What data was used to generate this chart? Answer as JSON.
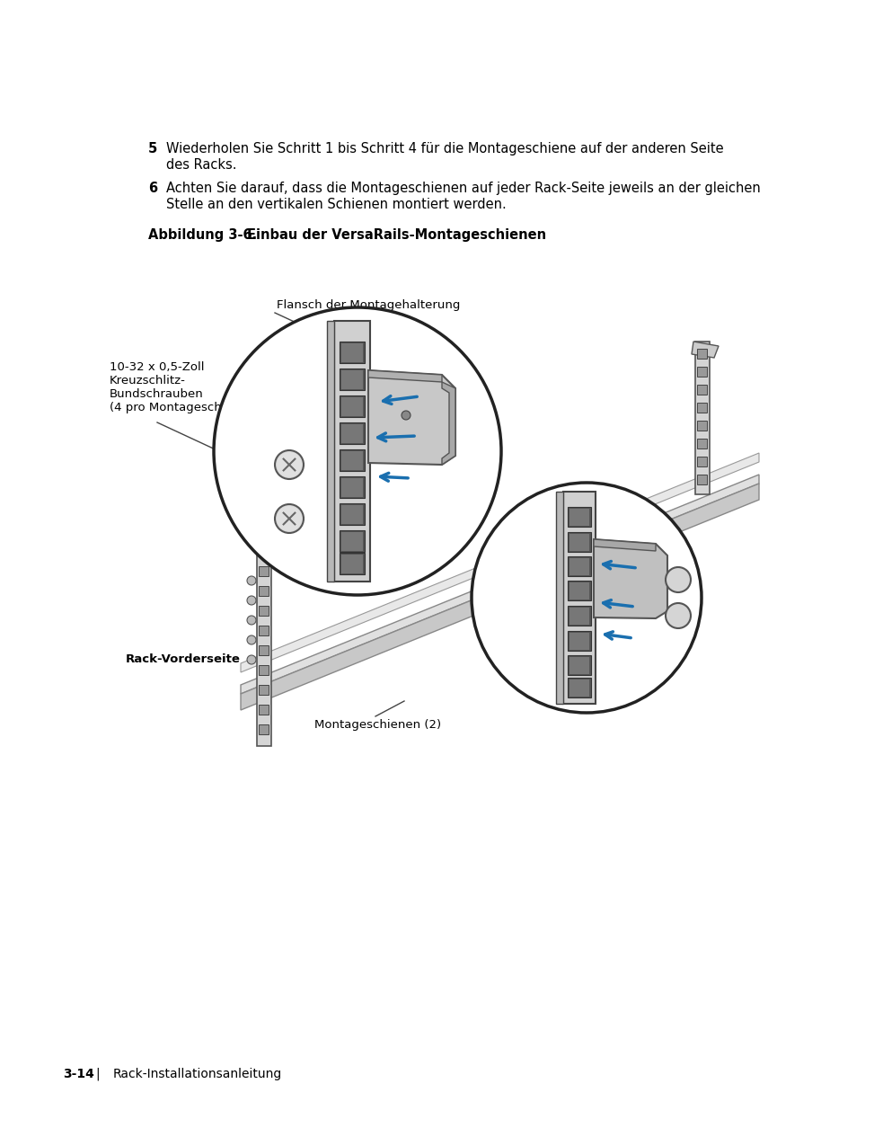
{
  "bg_color": "#ffffff",
  "step5_number": "5",
  "step5_text": "Wiederholen Sie Schritt 1 bis Schritt 4 für die Montageschiene auf der anderen Seite\ndes Racks.",
  "step6_number": "6",
  "step6_text": "Achten Sie darauf, dass die Montageschienen auf jeder Rack-Seite jeweils an der gleichen\nStelle an den vertikalen Schienen montiert werden.",
  "figure_label_bold": "Abbildung 3-6.",
  "figure_label_normal": "Einbau der VersaRails-Montageschienen",
  "label_flansch": "Flansch der Montagehalterung",
  "label_screws": "10-32 x 0,5-Zoll\nKreuzschlitz-\nBundschrauben\n(4 pro Montageschiene)",
  "label_rack": "Rack-Vorderseite",
  "label_montageschienen": "Montageschienen (2)",
  "footer_page": "3-14",
  "footer_sep": "|",
  "footer_text": "Rack-Installationsanleitung",
  "text_color": "#000000",
  "blue_color": "#1a6faf",
  "mid_gray": "#aaaaaa",
  "light_gray": "#d8d8d8",
  "dark_gray": "#555555",
  "rail_dark": "#333333",
  "screw_gray": "#cccccc"
}
